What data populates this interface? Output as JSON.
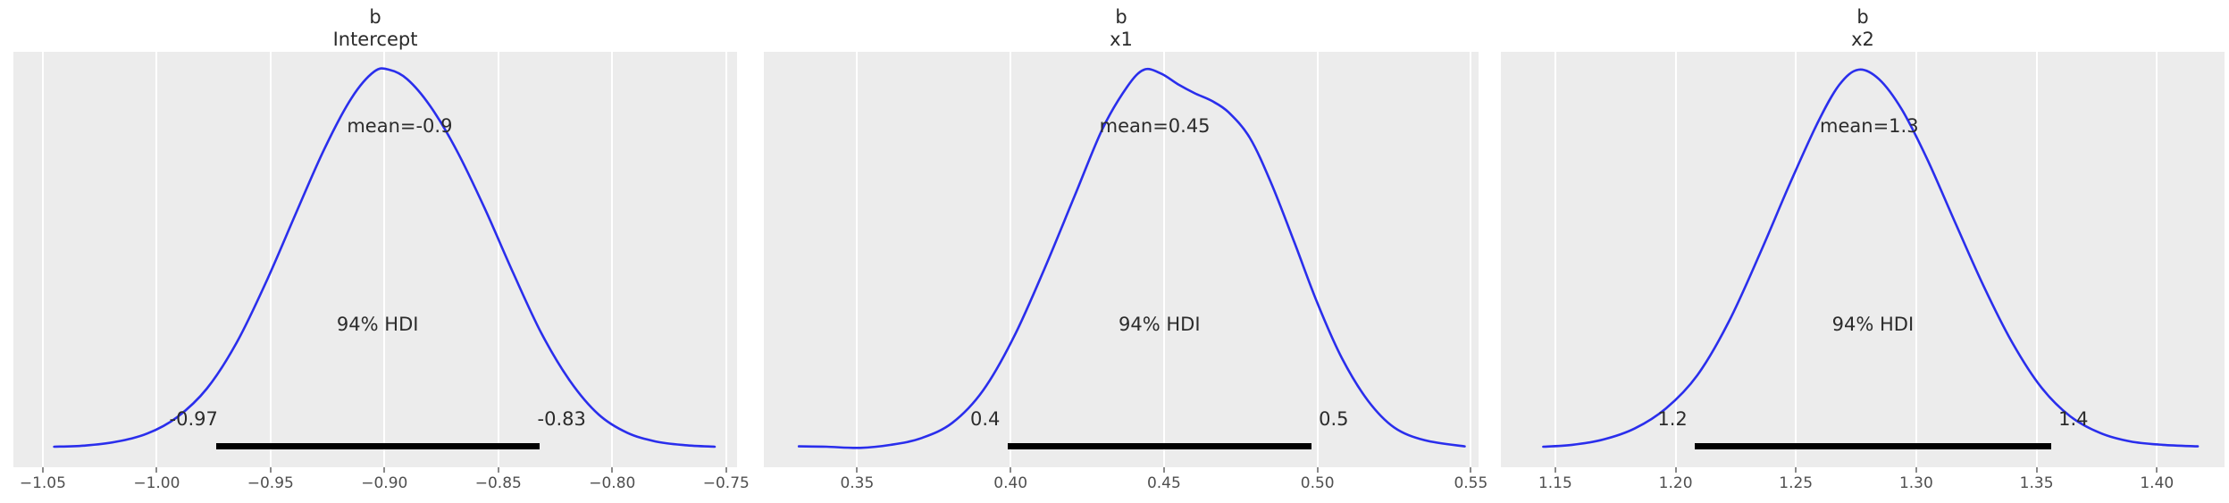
{
  "figure": {
    "kind": "posterior-density-figure",
    "interval_label": "94% HDI"
  },
  "style": {
    "curve_color": "#2a2eec",
    "plot_background": "#ececec",
    "grid_color": "#ffffff",
    "hdi_bar_color": "#000000",
    "annotation_text_color": "#2b2b2b",
    "tick_text_color": "#4f4f4f",
    "figure_background": "#ffffff"
  },
  "chart_data": [
    {
      "type": "line",
      "subtype": "kde-posterior-density",
      "title_lines": [
        "b",
        "Intercept"
      ],
      "xlabel": "",
      "ylabel": "",
      "grid": "vertical-only",
      "xlim": [
        -1.0629,
        -0.7452
      ],
      "xticks": [
        -1.05,
        -1.0,
        -0.95,
        -0.9,
        -0.85,
        -0.8,
        -0.75
      ],
      "xtick_labels": [
        "−1.05",
        "−1.00",
        "−0.95",
        "−0.90",
        "−0.85",
        "−0.80",
        "−0.75"
      ],
      "mean": {
        "value": -0.9,
        "label": "mean=-0.9"
      },
      "hdi": {
        "lo": -0.974,
        "hi": -0.832,
        "lo_label": "-0.97",
        "hi_label": "-0.83",
        "label": "94% HDI"
      },
      "curve": {
        "x": [
          -1.045,
          -1.032,
          -1.018,
          -1.004,
          -0.991,
          -0.978,
          -0.965,
          -0.952,
          -0.939,
          -0.9265,
          -0.9145,
          -0.9045,
          -0.898,
          -0.89,
          -0.88,
          -0.8685,
          -0.856,
          -0.8435,
          -0.831,
          -0.8185,
          -0.806,
          -0.7935,
          -0.781,
          -0.768,
          -0.755
        ],
        "density": [
          0.007,
          0.01,
          0.02,
          0.042,
          0.085,
          0.16,
          0.28,
          0.44,
          0.62,
          0.79,
          0.925,
          0.995,
          1.0,
          0.975,
          0.905,
          0.79,
          0.635,
          0.465,
          0.305,
          0.18,
          0.092,
          0.044,
          0.021,
          0.011,
          0.007
        ]
      }
    },
    {
      "type": "line",
      "subtype": "kde-posterior-density",
      "title_lines": [
        "b",
        "x1"
      ],
      "xlabel": "",
      "ylabel": "",
      "grid": "vertical-only",
      "xlim": [
        0.3196,
        0.5525
      ],
      "xticks": [
        0.35,
        0.4,
        0.45,
        0.5,
        0.55
      ],
      "xtick_labels": [
        "0.35",
        "0.40",
        "0.45",
        "0.50",
        "0.55"
      ],
      "mean": {
        "value": 0.45,
        "label": "mean=0.45"
      },
      "hdi": {
        "lo": 0.399,
        "hi": 0.498,
        "lo_label": "0.4",
        "hi_label": "0.5",
        "label": "94% HDI"
      },
      "curve": {
        "x": [
          0.331,
          0.34,
          0.351,
          0.361,
          0.371,
          0.381,
          0.391,
          0.401,
          0.411,
          0.421,
          0.43,
          0.438,
          0.4435,
          0.449,
          0.4545,
          0.46,
          0.4655,
          0.471,
          0.478,
          0.485,
          0.4925,
          0.5,
          0.508,
          0.5165,
          0.525,
          0.535,
          0.548
        ],
        "density": [
          0.008,
          0.007,
          0.004,
          0.012,
          0.03,
          0.07,
          0.155,
          0.295,
          0.475,
          0.67,
          0.845,
          0.955,
          1.0,
          0.99,
          0.962,
          0.938,
          0.918,
          0.888,
          0.82,
          0.7,
          0.545,
          0.385,
          0.24,
          0.128,
          0.058,
          0.024,
          0.008
        ]
      }
    },
    {
      "type": "line",
      "subtype": "kde-posterior-density",
      "title_lines": [
        "b",
        "x2"
      ],
      "xlabel": "",
      "ylabel": "",
      "grid": "vertical-only",
      "xlim": [
        1.1274,
        1.4281
      ],
      "xticks": [
        1.15,
        1.2,
        1.25,
        1.3,
        1.35,
        1.4
      ],
      "xtick_labels": [
        "1.15",
        "1.20",
        "1.25",
        "1.30",
        "1.35",
        "1.40"
      ],
      "mean": {
        "value": 1.3,
        "label": "mean=1.3"
      },
      "hdi": {
        "lo": 1.208,
        "hi": 1.356,
        "lo_label": "1.2",
        "hi_label": "1.4",
        "label": "94% HDI"
      },
      "curve": {
        "x": [
          1.145,
          1.157,
          1.17,
          1.183,
          1.196,
          1.209,
          1.222,
          1.235,
          1.2475,
          1.259,
          1.268,
          1.276,
          1.2845,
          1.294,
          1.3045,
          1.316,
          1.328,
          1.34,
          1.352,
          1.364,
          1.3765,
          1.389,
          1.4025,
          1.417
        ],
        "density": [
          0.007,
          0.012,
          0.026,
          0.055,
          0.108,
          0.195,
          0.335,
          0.515,
          0.7,
          0.86,
          0.96,
          1.0,
          0.975,
          0.895,
          0.765,
          0.6,
          0.43,
          0.28,
          0.163,
          0.087,
          0.043,
          0.021,
          0.012,
          0.008
        ]
      }
    }
  ]
}
